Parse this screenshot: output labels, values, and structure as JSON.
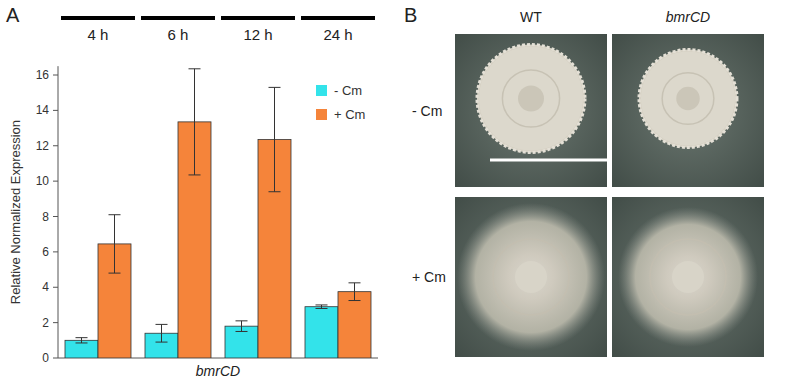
{
  "chart_data": {
    "type": "bar",
    "panel_label": "A",
    "categories": [
      "4 h",
      "6 h",
      "12 h",
      "24 h"
    ],
    "x_label": "bmrCD",
    "y_label": "Relative Normalized Expression",
    "series": [
      {
        "name": "- Cm",
        "color": "#33e3ea",
        "values": [
          1.0,
          1.4,
          1.8,
          2.9
        ],
        "errors": [
          0.15,
          0.5,
          0.3,
          0.1
        ]
      },
      {
        "name": "+ Cm",
        "color": "#f5843a",
        "values": [
          6.45,
          13.35,
          12.35,
          3.75
        ],
        "errors": [
          1.65,
          3.0,
          2.95,
          0.5
        ]
      }
    ],
    "ylim": [
      0,
      16.5
    ],
    "yticks": [
      0,
      2,
      4,
      6,
      8,
      10,
      12,
      14,
      16
    ],
    "grid": false,
    "legend": "top-right"
  },
  "panel_b": {
    "label": "B",
    "columns": [
      "WT",
      "bmrCD"
    ],
    "rows": [
      "- Cm",
      "+ Cm"
    ]
  }
}
